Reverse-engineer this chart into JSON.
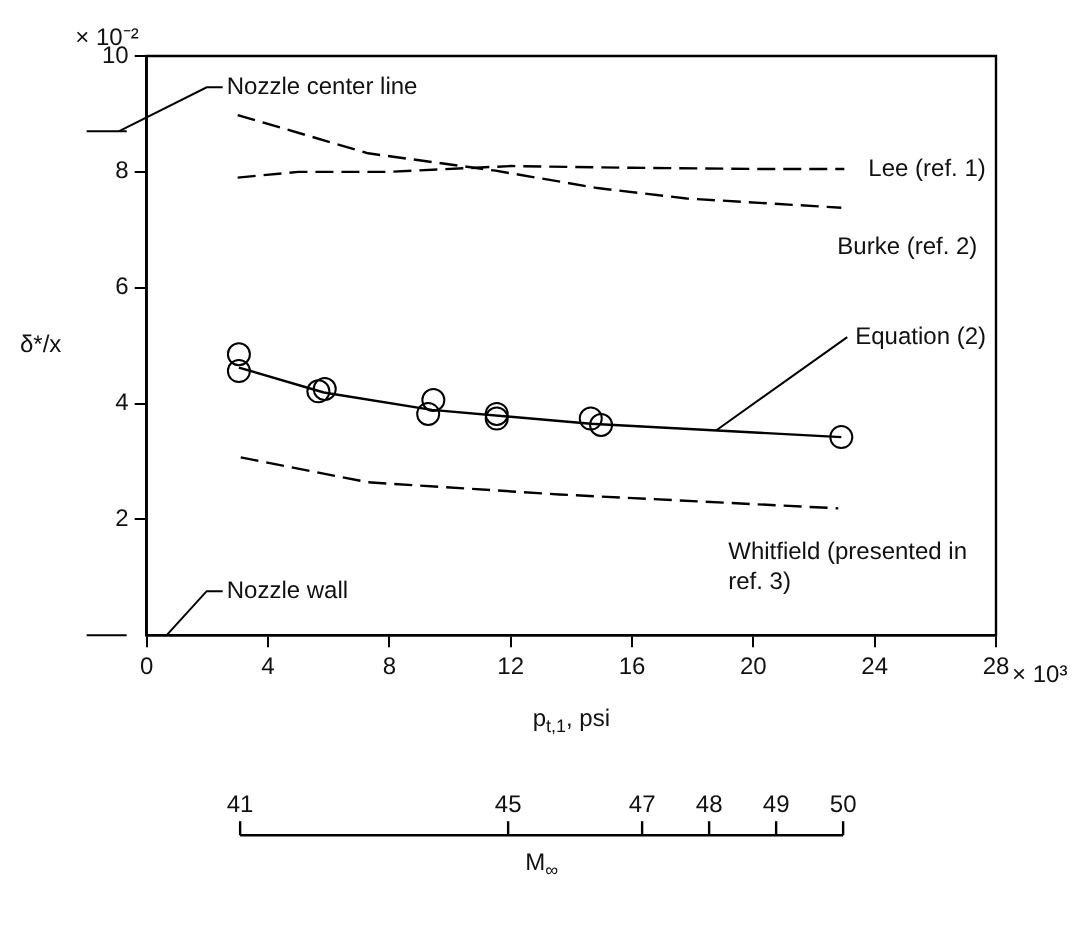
{
  "chart_data": {
    "type": "line",
    "xlabel": "p$_{t,1}$, psi",
    "ylabel": "δ*/x",
    "x2label": "M$_{∞}$",
    "xlim": [
      0,
      28
    ],
    "xticks": [
      0,
      4,
      8,
      12,
      16,
      20,
      24,
      28
    ],
    "ylim": [
      0,
      10
    ],
    "yticks": [
      2,
      4,
      6,
      8,
      10
    ],
    "grid": false,
    "legend": false,
    "x2lim": [
      41,
      50
    ],
    "x2ticks": [
      41,
      45,
      47,
      48,
      49,
      50
    ],
    "annotations": [
      "× 10³",
      "× 10⁻²",
      "Nozzle center line",
      "Nozzle wall"
    ],
    "series": [
      {
        "name": "Lee (ref. 1)",
        "line_style": "dashed",
        "marker": "none",
        "color": "#000000",
        "x": [
          3,
          5,
          8,
          12,
          16,
          20,
          23
        ],
        "values": [
          7.9,
          8.0,
          8.0,
          8.1,
          8.07,
          8.05,
          8.05
        ]
      },
      {
        "name": "Burke (ref. 2)",
        "line_style": "dashed",
        "marker": "none",
        "color": "#000000",
        "x": [
          3,
          7.3,
          11.5,
          14.86,
          17.8,
          22.9
        ],
        "values": [
          8.98,
          8.32,
          8.02,
          7.72,
          7.54,
          7.38
        ]
      },
      {
        "name": "Equation (2)",
        "line_style": "solid",
        "marker": "none",
        "color": "#000000",
        "x": [
          3.04,
          5.84,
          9.4,
          14.64,
          22.9
        ],
        "values": [
          4.62,
          4.19,
          3.89,
          3.65,
          3.42
        ]
      },
      {
        "name": "Whitfield (presented in ref. 3)",
        "line_style": "dashed",
        "marker": "none",
        "color": "#000000",
        "x": [
          3.1,
          7.3,
          13.6,
          22.8
        ],
        "values": [
          3.07,
          2.64,
          2.43,
          2.19
        ]
      },
      {
        "type": "scatter",
        "marker": "circle",
        "color": "#000000",
        "x": [
          3.04,
          3.04,
          5.66,
          5.87,
          9.28,
          9.45,
          11.54,
          11.54,
          14.64,
          14.98,
          22.9
        ],
        "values": [
          4.85,
          4.56,
          4.21,
          4.25,
          3.82,
          4.06,
          3.82,
          3.74,
          3.74,
          3.63,
          3.42
        ]
      }
    ]
  }
}
